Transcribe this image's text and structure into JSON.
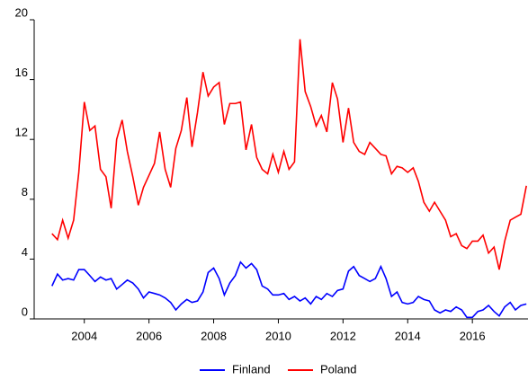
{
  "chart_data": {
    "type": "line",
    "x": [
      2003.0,
      2003.17,
      2003.33,
      2003.5,
      2003.67,
      2003.83,
      2004.0,
      2004.17,
      2004.33,
      2004.5,
      2004.67,
      2004.83,
      2005.0,
      2005.17,
      2005.33,
      2005.5,
      2005.67,
      2005.83,
      2006.0,
      2006.17,
      2006.33,
      2006.5,
      2006.67,
      2006.83,
      2007.0,
      2007.17,
      2007.33,
      2007.5,
      2007.67,
      2007.83,
      2008.0,
      2008.17,
      2008.33,
      2008.5,
      2008.67,
      2008.83,
      2009.0,
      2009.17,
      2009.33,
      2009.5,
      2009.67,
      2009.83,
      2010.0,
      2010.17,
      2010.33,
      2010.5,
      2010.67,
      2010.83,
      2011.0,
      2011.17,
      2011.33,
      2011.5,
      2011.67,
      2011.83,
      2012.0,
      2012.17,
      2012.33,
      2012.5,
      2012.67,
      2012.83,
      2013.0,
      2013.17,
      2013.33,
      2013.5,
      2013.67,
      2013.83,
      2014.0,
      2014.17,
      2014.33,
      2014.5,
      2014.67,
      2014.83,
      2015.0,
      2015.17,
      2015.33,
      2015.5,
      2015.67,
      2015.83,
      2016.0,
      2016.17,
      2016.33,
      2016.5,
      2016.67,
      2016.83,
      2017.0,
      2017.17,
      2017.33,
      2017.5,
      2017.67
    ],
    "series": [
      {
        "name": "Finland",
        "color": "#0000ff",
        "values": [
          2.2,
          3.0,
          2.6,
          2.7,
          2.6,
          3.3,
          3.3,
          2.9,
          2.5,
          2.8,
          2.6,
          2.7,
          2.0,
          2.3,
          2.6,
          2.4,
          2.0,
          1.4,
          1.8,
          1.7,
          1.6,
          1.4,
          1.1,
          0.6,
          1.0,
          1.3,
          1.1,
          1.2,
          1.8,
          3.1,
          3.4,
          2.7,
          1.6,
          2.4,
          2.9,
          3.8,
          3.4,
          3.7,
          3.3,
          2.2,
          2.0,
          1.6,
          1.6,
          1.7,
          1.3,
          1.5,
          1.2,
          1.4,
          1.0,
          1.5,
          1.3,
          1.7,
          1.5,
          1.9,
          2.0,
          3.2,
          3.5,
          2.9,
          2.7,
          2.5,
          2.7,
          3.5,
          2.7,
          1.5,
          1.8,
          1.1,
          1.0,
          1.1,
          1.5,
          1.3,
          1.2,
          0.6,
          0.4,
          0.6,
          0.5,
          0.8,
          0.6,
          0.1,
          0.1,
          0.5,
          0.6,
          0.9,
          0.5,
          0.2,
          0.8,
          1.1,
          0.6,
          0.9,
          1.0
        ]
      },
      {
        "name": "Poland",
        "color": "#ff0000",
        "values": [
          5.7,
          5.3,
          6.6,
          5.4,
          6.6,
          9.8,
          14.5,
          12.6,
          12.9,
          10.0,
          9.5,
          7.4,
          12.0,
          13.3,
          11.2,
          9.5,
          7.6,
          8.8,
          9.6,
          10.4,
          12.5,
          10.0,
          8.8,
          11.4,
          12.6,
          14.8,
          11.5,
          13.8,
          16.5,
          14.9,
          15.5,
          15.8,
          13.0,
          14.4,
          14.4,
          14.5,
          11.3,
          13.0,
          10.8,
          10.0,
          9.7,
          11.0,
          9.8,
          11.2,
          10.0,
          10.5,
          18.7,
          15.2,
          14.2,
          12.9,
          13.6,
          12.5,
          15.8,
          14.7,
          11.8,
          14.1,
          11.8,
          11.2,
          11.0,
          11.8,
          11.4,
          11.0,
          10.9,
          9.7,
          10.2,
          10.1,
          9.8,
          10.1,
          9.2,
          7.8,
          7.2,
          7.8,
          7.2,
          6.6,
          5.5,
          5.7,
          4.9,
          4.7,
          5.2,
          5.2,
          5.6,
          4.4,
          4.8,
          3.3,
          5.2,
          6.6,
          6.8,
          7.0,
          8.9
        ]
      }
    ],
    "xlim": [
      2002.45,
      2017.72
    ],
    "xticks": [
      2004,
      2006,
      2008,
      2010,
      2012,
      2014,
      2016
    ],
    "ylim": [
      0,
      20
    ],
    "yticks": [
      0,
      4,
      8,
      12,
      16,
      20
    ],
    "legend": "bottom"
  }
}
